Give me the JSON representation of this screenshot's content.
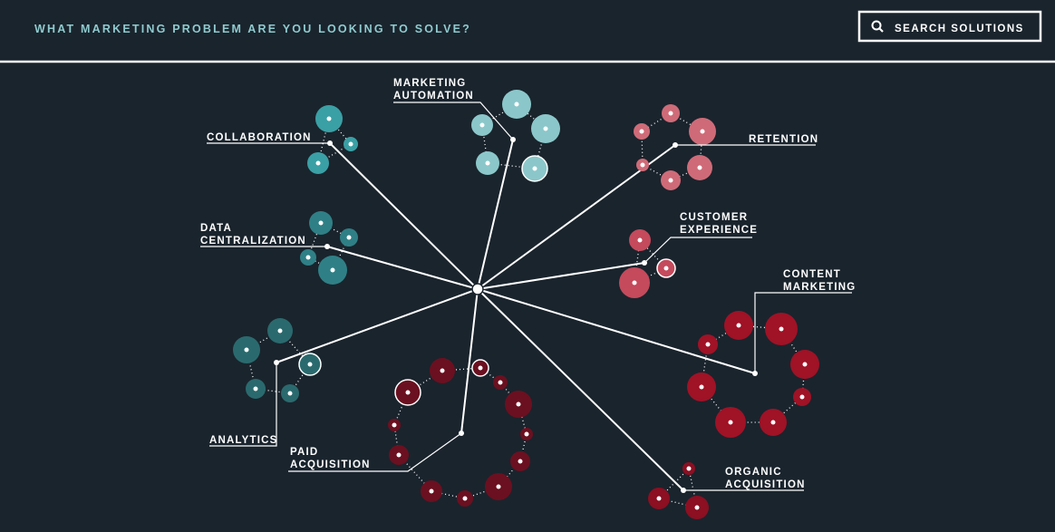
{
  "header": {
    "question": "WHAT MARKETING PROBLEM ARE YOU LOOKING TO SOLVE?",
    "search_button": "SEARCH SOLUTIONS"
  },
  "topics": [
    {
      "lines": [
        "COLLABORATION"
      ]
    },
    {
      "lines": [
        "MARKETING",
        "AUTOMATION"
      ]
    },
    {
      "lines": [
        "RETENTION"
      ]
    },
    {
      "lines": [
        "DATA",
        "CENTRALIZATION"
      ]
    },
    {
      "lines": [
        "CUSTOMER",
        "EXPERIENCE"
      ]
    },
    {
      "lines": [
        "ANALYTICS"
      ]
    },
    {
      "lines": [
        "PAID",
        "ACQUISITION"
      ]
    },
    {
      "lines": [
        "CONTENT",
        "MARKETING"
      ]
    },
    {
      "lines": [
        "ORGANIC",
        "ACQUISITION"
      ]
    }
  ]
}
